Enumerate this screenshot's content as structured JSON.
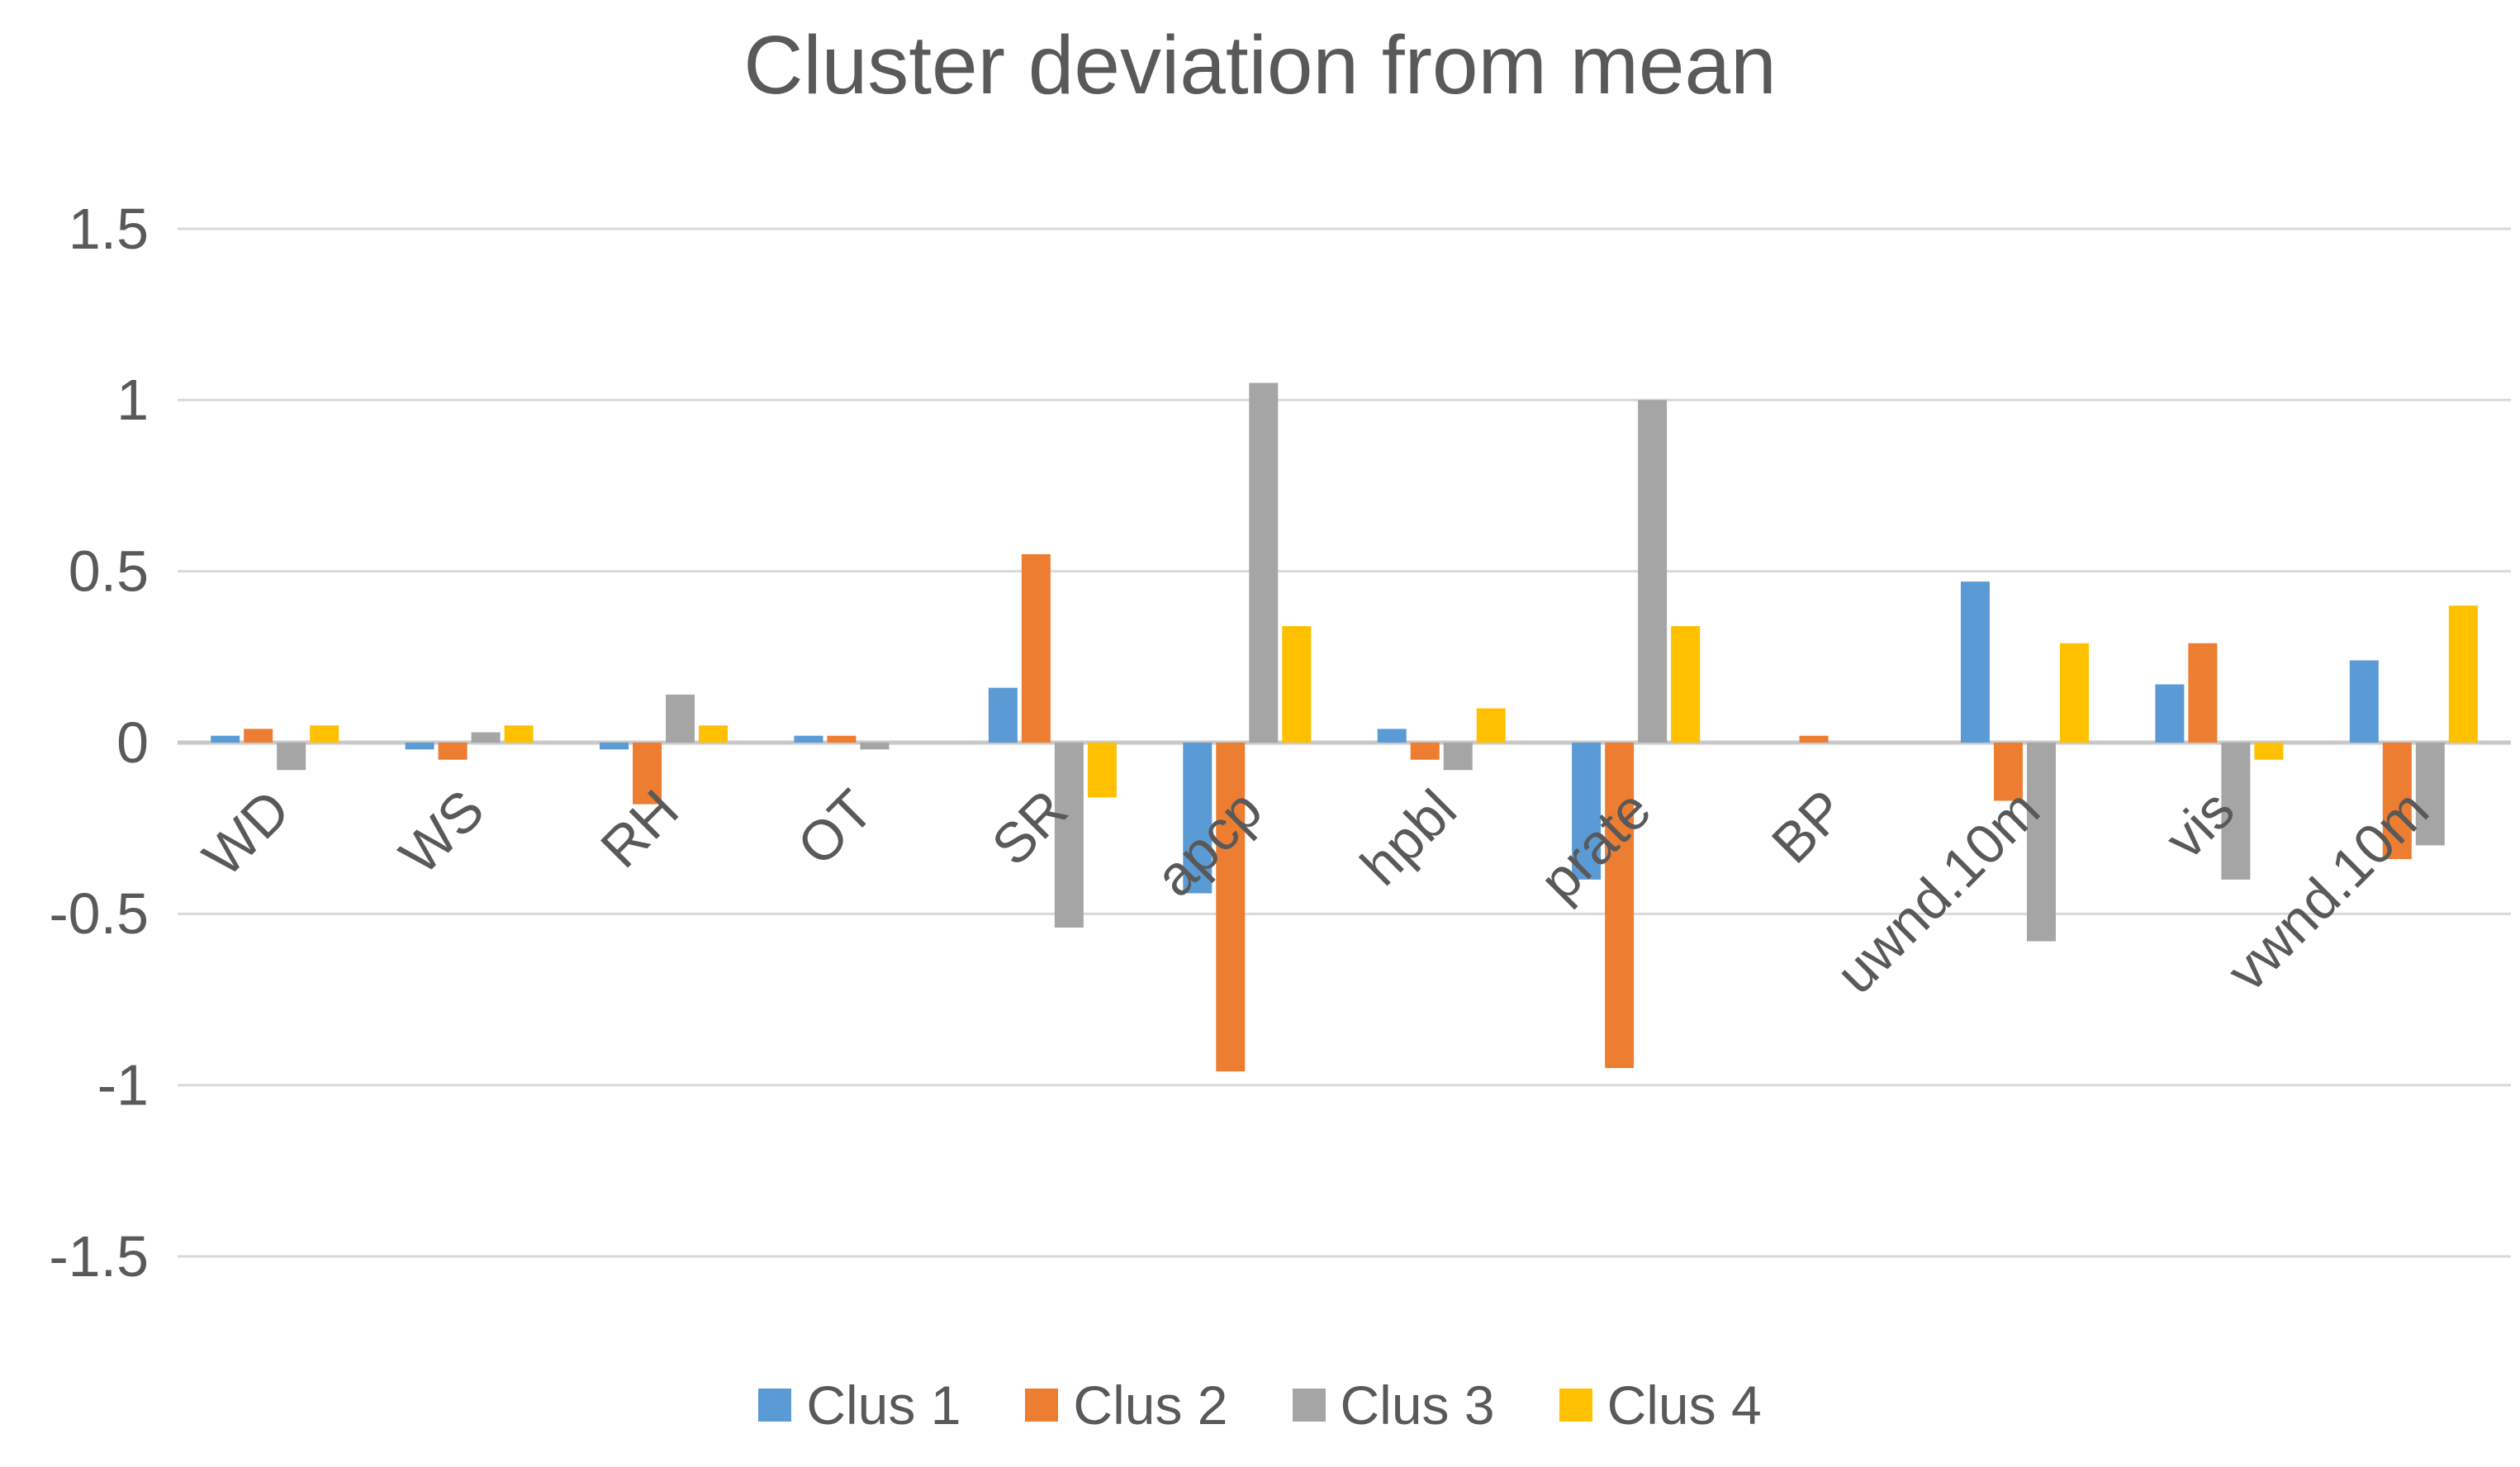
{
  "chart_data": {
    "type": "bar",
    "title": "Cluster deviation from mean",
    "categories": [
      "WD",
      "WS",
      "RH",
      "OT",
      "SR",
      "apcp",
      "hpbl",
      "prate",
      "BP",
      "uwnd.10m",
      "vis",
      "vwnd.10m"
    ],
    "series": [
      {
        "name": "Clus 1",
        "color": "#5B9BD5",
        "values": [
          0.02,
          -0.02,
          -0.02,
          0.02,
          0.16,
          -0.44,
          0.04,
          -0.4,
          0,
          0.47,
          0.17,
          0.24
        ]
      },
      {
        "name": "Clus 2",
        "color": "#ED7D31",
        "values": [
          0.04,
          -0.05,
          -0.18,
          0.02,
          0.55,
          -0.96,
          -0.05,
          -0.95,
          0.02,
          -0.17,
          0.29,
          -0.34
        ]
      },
      {
        "name": "Clus 3",
        "color": "#A5A5A5",
        "values": [
          -0.08,
          0.03,
          0.14,
          -0.02,
          -0.54,
          1.05,
          -0.08,
          1.0,
          0,
          -0.58,
          -0.4,
          -0.3
        ]
      },
      {
        "name": "Clus 4",
        "color": "#FFC000",
        "values": [
          0.05,
          0.05,
          0.05,
          0,
          -0.16,
          0.34,
          0.1,
          0.34,
          0,
          0.29,
          -0.05,
          0.4
        ]
      }
    ],
    "y_axis": {
      "min": -1.5,
      "max": 1.5,
      "step": 0.5,
      "tick_labels": [
        "1.5",
        "1",
        "0.5",
        "0",
        "-0.5",
        "-1",
        "-1.5"
      ]
    },
    "grid": true,
    "legend_position": "bottom",
    "colors": {
      "text": "#595959",
      "gridline": "#D9D9D9",
      "axis_line": "#C9C9C9",
      "background": "#FFFFFF"
    }
  }
}
